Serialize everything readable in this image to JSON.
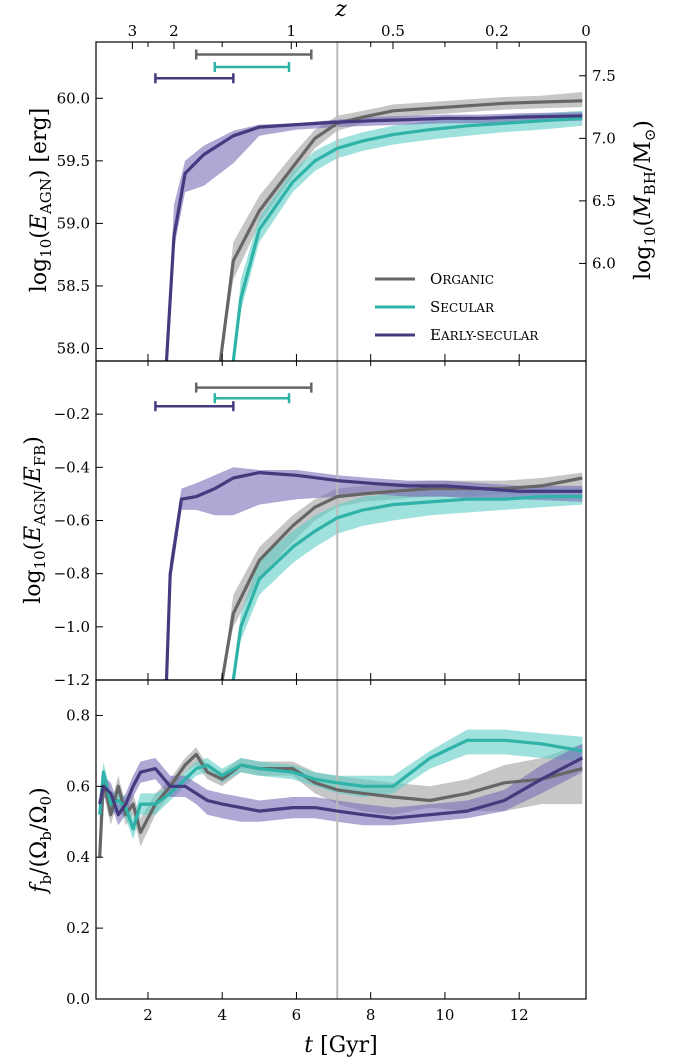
{
  "colors": {
    "organic": "#666666",
    "organic_band": "#a0a0a0",
    "secular": "#2fb3a8",
    "secular_band": "#5fcdc4",
    "early": "#453a7e",
    "early_band": "#7a6db7",
    "ref_line": "#bbbbbb"
  },
  "top_axis": {
    "label": "z",
    "ticks": [
      {
        "t": 1.58,
        "label": "3"
      },
      {
        "t": 2.7,
        "label": "2"
      },
      {
        "t": 5.86,
        "label": "1"
      },
      {
        "t": 8.6,
        "label": "0.5"
      },
      {
        "t": 11.4,
        "label": "0.2"
      },
      {
        "t": 13.8,
        "label": "0"
      }
    ]
  },
  "reference_time": 7.1,
  "chart_data": [
    {
      "type": "line",
      "panel": "top",
      "ylabel_left": "log10(EAGN) [erg]",
      "ylabel_right": "log10(MBH/M⊙)",
      "xlim": [
        0.6,
        13.8
      ],
      "ylim": [
        57.9,
        60.45
      ],
      "yticks": [
        58.0,
        58.5,
        59.0,
        59.5,
        60.0
      ],
      "ytick_labels": [
        "58.0",
        "58.5",
        "59.0",
        "59.5",
        "60.0"
      ],
      "right_yticks": [
        {
          "y": 58.68,
          "label": "6.0"
        },
        {
          "y": 59.18,
          "label": "6.5"
        },
        {
          "y": 59.68,
          "label": "7.0"
        },
        {
          "y": 60.18,
          "label": "7.5"
        }
      ],
      "legend": {
        "placement": "lower-right",
        "entries": [
          "Organic",
          "Secular",
          "Early-secular"
        ]
      },
      "intervals": [
        {
          "series": "Organic",
          "t0": 3.3,
          "t1": 6.4,
          "y": 60.35
        },
        {
          "series": "Secular",
          "t0": 3.8,
          "t1": 5.8,
          "y": 60.25
        },
        {
          "series": "Early-secular",
          "t0": 2.2,
          "t1": 4.3,
          "y": 60.16
        }
      ],
      "series": [
        {
          "name": "Organic",
          "x": [
            3.95,
            4.3,
            5.0,
            5.9,
            6.5,
            7.1,
            7.8,
            8.6,
            9.6,
            10.6,
            11.6,
            12.6,
            13.7
          ],
          "y": [
            57.9,
            58.7,
            59.1,
            59.45,
            59.68,
            59.8,
            59.85,
            59.9,
            59.92,
            59.94,
            59.96,
            59.97,
            59.98
          ],
          "lo": [
            57.9,
            58.55,
            59.0,
            59.37,
            59.6,
            59.74,
            59.8,
            59.84,
            59.87,
            59.89,
            59.91,
            59.92,
            59.93
          ],
          "hi": [
            57.9,
            58.85,
            59.22,
            59.55,
            59.75,
            59.86,
            59.9,
            59.95,
            59.97,
            59.99,
            60.01,
            60.02,
            60.05
          ]
        },
        {
          "name": "Secular",
          "x": [
            4.3,
            4.5,
            5.0,
            5.9,
            6.5,
            7.1,
            7.8,
            8.6,
            9.6,
            10.6,
            11.6,
            12.6,
            13.7
          ],
          "y": [
            57.9,
            58.4,
            58.95,
            59.33,
            59.5,
            59.6,
            59.66,
            59.71,
            59.75,
            59.78,
            59.8,
            59.82,
            59.84
          ],
          "lo": [
            57.9,
            58.3,
            58.85,
            59.25,
            59.42,
            59.52,
            59.58,
            59.63,
            59.67,
            59.7,
            59.73,
            59.75,
            59.78
          ],
          "hi": [
            57.9,
            58.55,
            59.05,
            59.42,
            59.58,
            59.67,
            59.73,
            59.78,
            59.82,
            59.84,
            59.86,
            59.88,
            59.9
          ]
        },
        {
          "name": "Early-secular",
          "x": [
            2.5,
            2.7,
            3.0,
            3.5,
            4.3,
            5.0,
            6.0,
            7.1,
            8.0,
            9.0,
            10.0,
            11.0,
            12.0,
            13.7
          ],
          "y": [
            57.9,
            58.9,
            59.4,
            59.55,
            59.7,
            59.77,
            59.79,
            59.81,
            59.82,
            59.83,
            59.84,
            59.84,
            59.85,
            59.86
          ],
          "lo": [
            57.9,
            58.8,
            59.25,
            59.3,
            59.48,
            59.7,
            59.75,
            59.77,
            59.78,
            59.79,
            59.8,
            59.8,
            59.81,
            59.82
          ],
          "hi": [
            57.9,
            59.15,
            59.5,
            59.62,
            59.74,
            59.79,
            59.8,
            59.83,
            59.85,
            59.86,
            59.87,
            59.87,
            59.88,
            59.89
          ]
        }
      ]
    },
    {
      "type": "line",
      "panel": "middle",
      "ylabel_left": "log10(EAGN/EFB)",
      "xlim": [
        0.6,
        13.8
      ],
      "ylim": [
        -1.2,
        0.0
      ],
      "yticks": [
        -1.2,
        -1.0,
        -0.8,
        -0.6,
        -0.4,
        -0.2
      ],
      "ytick_labels": [
        "−1.2",
        "−1.0",
        "−0.8",
        "−0.6",
        "−0.4",
        "−0.2"
      ],
      "intervals": [
        {
          "series": "Organic",
          "t0": 3.3,
          "t1": 6.4,
          "y": -0.1
        },
        {
          "series": "Secular",
          "t0": 3.8,
          "t1": 5.8,
          "y": -0.14
        },
        {
          "series": "Early-secular",
          "t0": 2.2,
          "t1": 4.3,
          "y": -0.17
        }
      ],
      "series": [
        {
          "name": "Organic",
          "x": [
            4.0,
            4.3,
            5.0,
            5.9,
            6.5,
            7.1,
            7.8,
            8.6,
            9.6,
            10.6,
            11.6,
            12.6,
            13.7
          ],
          "y": [
            -1.2,
            -0.95,
            -0.75,
            -0.62,
            -0.55,
            -0.51,
            -0.5,
            -0.49,
            -0.48,
            -0.48,
            -0.48,
            -0.47,
            -0.44
          ],
          "lo": [
            -1.2,
            -1.0,
            -0.82,
            -0.68,
            -0.6,
            -0.55,
            -0.53,
            -0.52,
            -0.51,
            -0.51,
            -0.5,
            -0.5,
            -0.49
          ],
          "hi": [
            -1.2,
            -0.88,
            -0.7,
            -0.58,
            -0.52,
            -0.48,
            -0.47,
            -0.46,
            -0.45,
            -0.45,
            -0.45,
            -0.44,
            -0.42
          ]
        },
        {
          "name": "Secular",
          "x": [
            4.3,
            4.5,
            5.0,
            5.9,
            6.5,
            7.1,
            7.8,
            8.6,
            9.6,
            10.6,
            11.6,
            12.6,
            13.7
          ],
          "y": [
            -1.2,
            -1.0,
            -0.82,
            -0.7,
            -0.64,
            -0.59,
            -0.56,
            -0.54,
            -0.53,
            -0.52,
            -0.52,
            -0.51,
            -0.51
          ],
          "lo": [
            -1.2,
            -1.05,
            -0.88,
            -0.76,
            -0.7,
            -0.65,
            -0.62,
            -0.6,
            -0.58,
            -0.57,
            -0.56,
            -0.55,
            -0.54
          ],
          "hi": [
            -1.2,
            -0.95,
            -0.75,
            -0.64,
            -0.58,
            -0.54,
            -0.51,
            -0.5,
            -0.49,
            -0.49,
            -0.49,
            -0.48,
            -0.48
          ]
        },
        {
          "name": "Early-secular",
          "x": [
            2.5,
            2.6,
            2.9,
            3.3,
            3.8,
            4.3,
            5.0,
            6.0,
            7.1,
            8.0,
            9.0,
            10.0,
            11.0,
            12.0,
            13.7
          ],
          "y": [
            -1.2,
            -0.8,
            -0.52,
            -0.51,
            -0.48,
            -0.44,
            -0.42,
            -0.43,
            -0.45,
            -0.46,
            -0.47,
            -0.47,
            -0.48,
            -0.49,
            -0.49
          ],
          "lo": [
            -1.2,
            -0.85,
            -0.56,
            -0.56,
            -0.58,
            -0.58,
            -0.54,
            -0.52,
            -0.51,
            -0.5,
            -0.51,
            -0.51,
            -0.52,
            -0.52,
            -0.53
          ],
          "hi": [
            -1.2,
            -0.75,
            -0.48,
            -0.46,
            -0.43,
            -0.4,
            -0.41,
            -0.41,
            -0.43,
            -0.44,
            -0.45,
            -0.45,
            -0.46,
            -0.47,
            -0.47
          ]
        }
      ]
    },
    {
      "type": "line",
      "panel": "bottom",
      "ylabel_left": "fb/(Ωb/Ω0)",
      "xlabel": "t [Gyr]",
      "xlim": [
        0.6,
        13.8
      ],
      "ylim": [
        0.0,
        0.9
      ],
      "xticks": [
        2,
        4,
        6,
        8,
        10,
        12
      ],
      "xtick_labels": [
        "2",
        "4",
        "6",
        "8",
        "10",
        "12"
      ],
      "yticks": [
        0.0,
        0.2,
        0.4,
        0.6,
        0.8
      ],
      "ytick_labels": [
        "0.0",
        "0.2",
        "0.4",
        "0.6",
        "0.8"
      ],
      "series": [
        {
          "name": "Organic",
          "x": [
            0.7,
            0.8,
            1.0,
            1.2,
            1.4,
            1.6,
            1.8,
            2.2,
            2.6,
            3.0,
            3.3,
            3.6,
            4.0,
            4.5,
            5.0,
            5.9,
            6.5,
            7.1,
            7.8,
            8.6,
            9.6,
            10.6,
            11.6,
            12.6,
            13.7
          ],
          "y": [
            0.4,
            0.62,
            0.52,
            0.6,
            0.52,
            0.55,
            0.47,
            0.55,
            0.6,
            0.66,
            0.69,
            0.64,
            0.62,
            0.66,
            0.65,
            0.65,
            0.61,
            0.59,
            0.58,
            0.57,
            0.56,
            0.58,
            0.61,
            0.62,
            0.65
          ],
          "lo": [
            0.37,
            0.58,
            0.49,
            0.57,
            0.49,
            0.52,
            0.43,
            0.52,
            0.58,
            0.64,
            0.66,
            0.62,
            0.6,
            0.64,
            0.63,
            0.63,
            0.58,
            0.55,
            0.53,
            0.52,
            0.54,
            0.53,
            0.53,
            0.55,
            0.55
          ],
          "hi": [
            0.43,
            0.65,
            0.55,
            0.63,
            0.55,
            0.58,
            0.51,
            0.58,
            0.62,
            0.68,
            0.71,
            0.66,
            0.64,
            0.68,
            0.67,
            0.67,
            0.64,
            0.63,
            0.62,
            0.61,
            0.6,
            0.62,
            0.66,
            0.68,
            0.72
          ]
        },
        {
          "name": "Secular",
          "x": [
            0.7,
            0.8,
            1.0,
            1.2,
            1.4,
            1.6,
            1.8,
            2.2,
            2.6,
            3.0,
            3.3,
            3.6,
            4.0,
            4.5,
            5.0,
            5.9,
            6.5,
            7.1,
            7.8,
            8.6,
            9.6,
            10.6,
            11.6,
            12.6,
            13.7
          ],
          "y": [
            0.52,
            0.64,
            0.55,
            0.56,
            0.54,
            0.48,
            0.55,
            0.55,
            0.58,
            0.62,
            0.65,
            0.66,
            0.63,
            0.66,
            0.65,
            0.64,
            0.62,
            0.61,
            0.6,
            0.6,
            0.68,
            0.73,
            0.73,
            0.72,
            0.7
          ],
          "lo": [
            0.49,
            0.61,
            0.52,
            0.53,
            0.51,
            0.45,
            0.52,
            0.52,
            0.56,
            0.6,
            0.63,
            0.64,
            0.61,
            0.64,
            0.63,
            0.62,
            0.6,
            0.58,
            0.57,
            0.58,
            0.65,
            0.69,
            0.69,
            0.68,
            0.67
          ],
          "hi": [
            0.55,
            0.67,
            0.58,
            0.59,
            0.57,
            0.51,
            0.58,
            0.58,
            0.6,
            0.64,
            0.67,
            0.68,
            0.65,
            0.68,
            0.67,
            0.66,
            0.64,
            0.63,
            0.63,
            0.63,
            0.7,
            0.76,
            0.76,
            0.75,
            0.74
          ]
        },
        {
          "name": "Early-secular",
          "x": [
            0.7,
            0.8,
            1.0,
            1.2,
            1.4,
            1.6,
            1.8,
            2.2,
            2.6,
            3.0,
            3.3,
            3.6,
            4.0,
            4.5,
            5.0,
            5.9,
            6.5,
            7.1,
            7.8,
            8.6,
            9.6,
            10.6,
            11.6,
            12.6,
            13.7
          ],
          "y": [
            0.55,
            0.6,
            0.58,
            0.52,
            0.55,
            0.6,
            0.64,
            0.65,
            0.6,
            0.6,
            0.58,
            0.56,
            0.55,
            0.54,
            0.53,
            0.54,
            0.54,
            0.53,
            0.52,
            0.51,
            0.52,
            0.53,
            0.56,
            0.62,
            0.68
          ],
          "lo": [
            0.52,
            0.57,
            0.55,
            0.49,
            0.52,
            0.57,
            0.61,
            0.62,
            0.57,
            0.57,
            0.55,
            0.52,
            0.51,
            0.5,
            0.5,
            0.51,
            0.51,
            0.5,
            0.49,
            0.49,
            0.5,
            0.51,
            0.53,
            0.58,
            0.64
          ],
          "hi": [
            0.58,
            0.63,
            0.61,
            0.55,
            0.58,
            0.63,
            0.67,
            0.68,
            0.63,
            0.63,
            0.61,
            0.59,
            0.58,
            0.57,
            0.56,
            0.57,
            0.57,
            0.56,
            0.55,
            0.54,
            0.55,
            0.56,
            0.59,
            0.66,
            0.72
          ]
        }
      ]
    }
  ]
}
